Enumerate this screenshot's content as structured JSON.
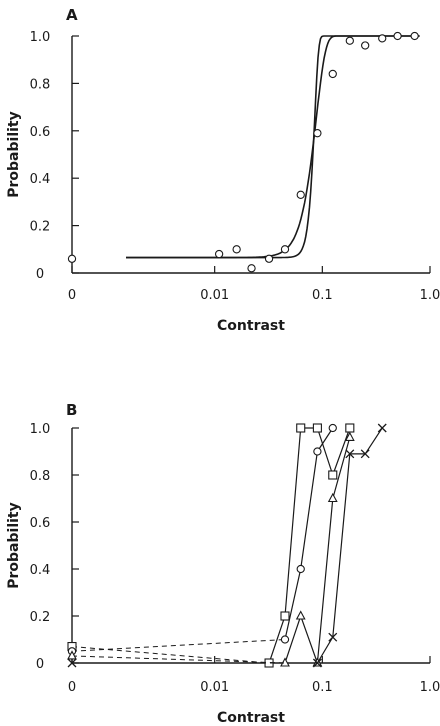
{
  "chart_data": [
    {
      "panel": "A",
      "type": "scatter",
      "xlabel": "Contrast",
      "ylabel": "Probability",
      "x_ticks": [
        "0",
        "0.01",
        "0.1",
        "1.0"
      ],
      "y_ticks": [
        "0",
        "0.2",
        "0.4",
        "0.6",
        "0.8",
        "1.0"
      ],
      "xscale": "log",
      "xlim": [
        0.001,
        1.0
      ],
      "ylim": [
        0,
        1.0
      ],
      "series": [
        {
          "marker": "circle",
          "points": [
            {
              "x": 0,
              "y": 0.06
            },
            {
              "x": 0.011,
              "y": 0.08
            },
            {
              "x": 0.016,
              "y": 0.1
            },
            {
              "x": 0.022,
              "y": 0.02
            },
            {
              "x": 0.032,
              "y": 0.06
            },
            {
              "x": 0.045,
              "y": 0.1
            },
            {
              "x": 0.063,
              "y": 0.33
            },
            {
              "x": 0.09,
              "y": 0.59
            },
            {
              "x": 0.125,
              "y": 0.84
            },
            {
              "x": 0.18,
              "y": 0.98
            },
            {
              "x": 0.25,
              "y": 0.96
            },
            {
              "x": 0.36,
              "y": 0.99
            },
            {
              "x": 0.5,
              "y": 1.0
            },
            {
              "x": 0.72,
              "y": 1.0
            }
          ]
        }
      ],
      "fit_curves": [
        {
          "guess_rate": 0.065,
          "threshold": 0.088,
          "slope": 5.0,
          "x_range": [
            0.0015,
            0.8
          ]
        },
        {
          "guess_rate": 0.065,
          "threshold": 0.085,
          "slope": 12.0,
          "x_range": [
            0.0015,
            0.8
          ]
        }
      ]
    },
    {
      "panel": "B",
      "type": "line",
      "xlabel": "Contrast",
      "ylabel": "Probability",
      "x_ticks": [
        "0",
        "0.01",
        "0.1",
        "1.0"
      ],
      "y_ticks": [
        "0",
        "0.2",
        "0.4",
        "0.6",
        "0.8",
        "1.0"
      ],
      "xscale": "log",
      "xlim": [
        0.001,
        1.0
      ],
      "ylim": [
        0,
        1.0
      ],
      "series": [
        {
          "marker": "square",
          "zero_contrast": 0.07,
          "points": [
            [
              0.032,
              0.0
            ],
            [
              0.045,
              0.2
            ],
            [
              0.063,
              1.0
            ],
            [
              0.09,
              1.0
            ],
            [
              0.125,
              0.8
            ],
            [
              0.18,
              1.0
            ]
          ]
        },
        {
          "marker": "circle",
          "zero_contrast": 0.05,
          "points": [
            [
              0.045,
              0.1
            ],
            [
              0.063,
              0.4
            ],
            [
              0.09,
              0.9
            ],
            [
              0.125,
              1.0
            ]
          ]
        },
        {
          "marker": "triangle",
          "zero_contrast": 0.03,
          "points": [
            [
              0.045,
              0.0
            ],
            [
              0.063,
              0.2
            ],
            [
              0.09,
              0.0
            ],
            [
              0.125,
              0.7
            ],
            [
              0.18,
              0.96
            ]
          ]
        },
        {
          "marker": "cross",
          "zero_contrast": 0.0,
          "points": [
            [
              0.09,
              0.0
            ],
            [
              0.125,
              0.11
            ],
            [
              0.18,
              0.89
            ],
            [
              0.25,
              0.89
            ],
            [
              0.36,
              1.0
            ]
          ]
        }
      ]
    }
  ]
}
